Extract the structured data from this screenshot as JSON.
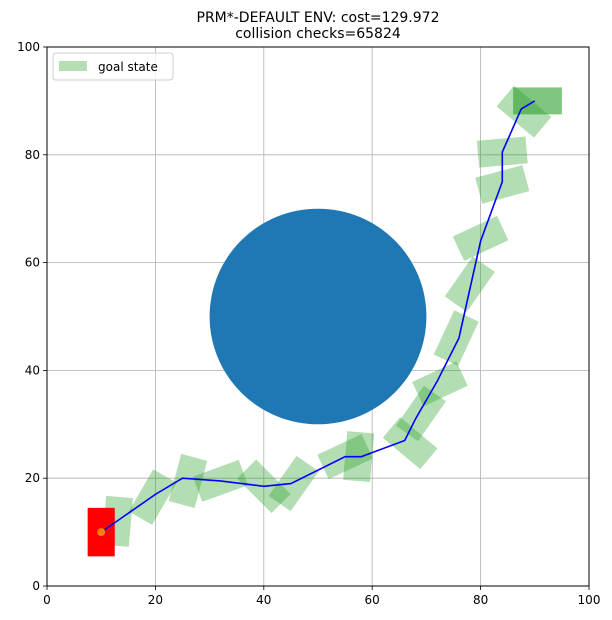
{
  "chart_data": {
    "type": "scatter",
    "title_line1": "PRM*-DEFAULT ENV: cost=129.972",
    "title_line2": "collision checks=65824",
    "xlim": [
      0,
      100
    ],
    "ylim": [
      0,
      100
    ],
    "x_ticks": [
      0,
      20,
      40,
      60,
      80,
      100
    ],
    "y_ticks": [
      0,
      20,
      40,
      60,
      80,
      100
    ],
    "x_tick_labels": [
      "0",
      "20",
      "40",
      "60",
      "80",
      "100"
    ],
    "y_tick_labels": [
      "0",
      "20",
      "40",
      "60",
      "80",
      "100"
    ],
    "grid": true,
    "legend": {
      "label": "goal state",
      "placement": "top-left"
    },
    "obstacle": {
      "cx": 50,
      "cy": 50,
      "r": 20,
      "color": "#1f77b4"
    },
    "start_rect": {
      "x": 7.5,
      "y": 5.5,
      "w": 5,
      "h": 9,
      "color": "#ff0000"
    },
    "start_point": {
      "x": 10,
      "y": 10,
      "color": "#ff7f0e"
    },
    "goal_rect": {
      "x": 86,
      "y": 87.5,
      "w": 9,
      "h": 5,
      "color": "#2ca02c"
    },
    "path_color": "#0000ff",
    "path": [
      [
        10,
        10
      ],
      [
        20,
        17
      ],
      [
        25,
        20
      ],
      [
        32,
        19.5
      ],
      [
        40,
        18.5
      ],
      [
        45,
        19
      ],
      [
        55,
        24
      ],
      [
        58,
        24
      ],
      [
        66,
        27
      ],
      [
        68,
        31
      ],
      [
        72,
        38
      ],
      [
        76,
        46
      ],
      [
        80,
        64
      ],
      [
        84,
        75
      ],
      [
        84,
        80.5
      ],
      [
        87.5,
        88.5
      ],
      [
        90,
        90
      ]
    ],
    "robot_states": [
      {
        "x": 13,
        "y": 12,
        "angle": 85
      },
      {
        "x": 19.5,
        "y": 16.5,
        "angle": 60
      },
      {
        "x": 26,
        "y": 19.5,
        "angle": 75
      },
      {
        "x": 32,
        "y": 19.5,
        "angle": 20
      },
      {
        "x": 40,
        "y": 18.5,
        "angle": -45
      },
      {
        "x": 45.5,
        "y": 19,
        "angle": 55
      },
      {
        "x": 55,
        "y": 24,
        "angle": 25
      },
      {
        "x": 57.5,
        "y": 24,
        "angle": 85
      },
      {
        "x": 67,
        "y": 26.5,
        "angle": -40
      },
      {
        "x": 69,
        "y": 32,
        "angle": 55
      },
      {
        "x": 72.5,
        "y": 37.5,
        "angle": 25
      },
      {
        "x": 75.5,
        "y": 46,
        "angle": 65
      },
      {
        "x": 78,
        "y": 56,
        "angle": 55
      },
      {
        "x": 80,
        "y": 64.5,
        "angle": 25
      },
      {
        "x": 84,
        "y": 74.5,
        "angle": 15
      },
      {
        "x": 84,
        "y": 80.5,
        "angle": 5
      },
      {
        "x": 88,
        "y": 88,
        "angle": -40
      }
    ],
    "robot_size": {
      "w": 9,
      "h": 5
    },
    "state_color": "#2ca02c"
  }
}
